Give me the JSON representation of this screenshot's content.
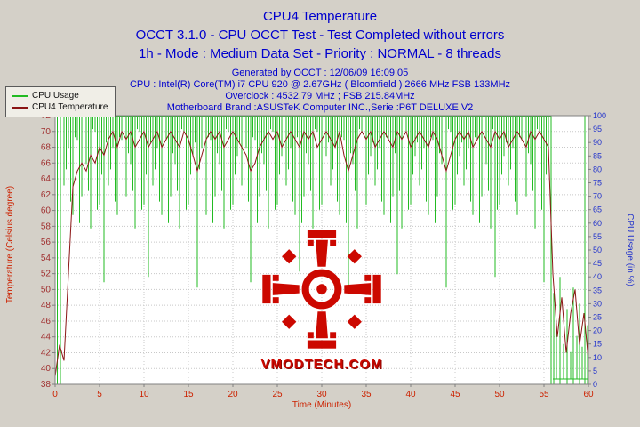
{
  "header": {
    "title": "CPU4 Temperature",
    "line2": "OCCT 3.1.0 - CPU OCCT Test - Test Completed without errors",
    "line3": "1h - Mode : Medium Data Set - Priority : NORMAL - 8 threads",
    "info": [
      "Generated by OCCT : 12/06/09 16:09:05",
      "CPU : Intel(R) Core(TM) i7 CPU 920 @ 2.67GHz ( Bloomfield ) 2666 MHz FSB 133MHz",
      "Overclock : 4532.79 MHz ; FSB 215.84MHz",
      "Motherboard Brand :ASUSTeK Computer INC.,Serie :P6T DELUXE V2"
    ],
    "title_color": "#0000cd"
  },
  "legend": {
    "items": [
      {
        "label": "CPU Usage",
        "color": "#22bb22"
      },
      {
        "label": "CPU4 Temperature",
        "color": "#8b1515"
      }
    ]
  },
  "watermark": {
    "text": "VMODTECH.COM",
    "color": "#cc0800"
  },
  "chart_data": {
    "type": "line",
    "title": "CPU4 Temperature",
    "xlabel": "Time (Minutes)",
    "ylabel_left": "Temperature (Celsius degree)",
    "ylabel_right": "CPU Usage (in %)",
    "x_range": [
      0,
      60
    ],
    "x_ticks": [
      0,
      5,
      10,
      15,
      20,
      25,
      30,
      35,
      40,
      45,
      50,
      55,
      60
    ],
    "y_left_range": [
      38,
      72
    ],
    "y_left_ticks": [
      38,
      40,
      42,
      44,
      46,
      48,
      50,
      52,
      54,
      56,
      58,
      60,
      62,
      64,
      66,
      68,
      70,
      72
    ],
    "y_right_range": [
      0,
      100
    ],
    "y_right_ticks": [
      0,
      5,
      10,
      15,
      20,
      25,
      30,
      35,
      40,
      45,
      50,
      55,
      60,
      65,
      70,
      75,
      80,
      85,
      90,
      95,
      100
    ],
    "grid": true,
    "legend_position": "top-left",
    "colors": {
      "grid": "#c8c8c8",
      "plot_bg": "#ffffff",
      "border": "#808080",
      "x_label": "#cc2200",
      "y_left_label": "#a03030",
      "y_right_label": "#2233cc"
    },
    "series": [
      {
        "name": "CPU4 Temperature",
        "axis": "left",
        "color": "#8b1515",
        "t_start": 0,
        "t_step": 0.5,
        "values": [
          39,
          43,
          41,
          52,
          63,
          65,
          66,
          65,
          67,
          66,
          68,
          67,
          69,
          70,
          68,
          70,
          69,
          70,
          68,
          69,
          70,
          68,
          69,
          70,
          68,
          69,
          70,
          69,
          68,
          70,
          69,
          67,
          65,
          67,
          69,
          70,
          69,
          70,
          68,
          69,
          70,
          69,
          68,
          67,
          65,
          66,
          68,
          69,
          70,
          69,
          70,
          68,
          69,
          70,
          69,
          68,
          70,
          69,
          70,
          68,
          69,
          70,
          69,
          68,
          70,
          67,
          65,
          67,
          69,
          70,
          69,
          70,
          68,
          69,
          70,
          69,
          68,
          70,
          69,
          70,
          68,
          69,
          70,
          69,
          68,
          70,
          69,
          67,
          65,
          67,
          69,
          70,
          69,
          70,
          68,
          69,
          70,
          69,
          68,
          70,
          69,
          70,
          68,
          69,
          70,
          69,
          68,
          70,
          69,
          70,
          69,
          68,
          52,
          44,
          49,
          42,
          47,
          50,
          43,
          47,
          41
        ]
      },
      {
        "name": "CPU Usage",
        "axis": "right",
        "color": "#22bb22",
        "style": "vertical-strokes",
        "top_line": {
          "from": 0.8,
          "to": 55.8,
          "value": 100
        },
        "tail_line": {
          "from": 56.0,
          "to": 60,
          "value": 2
        },
        "stroke_sets": [
          {
            "t_start": 1.0,
            "t_step": 0.5,
            "hi": 100,
            "lo": [
              74,
              88,
              63,
              91,
              70,
              82,
              58,
              94,
              67,
              38,
              74,
              88,
              63,
              91,
              70,
              82,
              58,
              94,
              67,
              40,
              74,
              88,
              63,
              91,
              70,
              82,
              58,
              94,
              67,
              85,
              36,
              88,
              63,
              91,
              70,
              82,
              58,
              94,
              67,
              85,
              74,
              88,
              38,
              91,
              70,
              82,
              58,
              94,
              67,
              85,
              74,
              88,
              63,
              42,
              70,
              82,
              58,
              94,
              67,
              85,
              74,
              88,
              63,
              91,
              37,
              82,
              58,
              94,
              67,
              85,
              74,
              88,
              63,
              91,
              70,
              41,
              58,
              94,
              67,
              85,
              74,
              88,
              63,
              91,
              70,
              82,
              36,
              94,
              67,
              85,
              74,
              88,
              63,
              91,
              70,
              82,
              58,
              40,
              67,
              85,
              74,
              88,
              63,
              91,
              70,
              82,
              58,
              94,
              38,
              85
            ]
          },
          {
            "t_start": 1.25,
            "t_step": 0.5,
            "hi": 100,
            "lo": [
              80,
              68,
              92,
              60,
              86,
              72,
              95,
              65,
              78,
              90,
              80,
              68,
              92,
              60,
              86,
              72,
              95,
              65,
              78,
              90,
              80,
              68,
              92,
              60,
              86,
              72,
              95,
              65,
              78,
              90,
              80,
              68,
              92,
              60,
              86,
              72,
              95,
              65,
              78,
              90,
              80,
              68,
              92,
              60,
              86,
              72,
              95,
              65,
              78,
              90,
              80,
              68,
              92,
              60,
              86,
              72,
              95,
              65,
              78,
              90,
              80,
              68,
              92,
              60,
              86,
              72,
              95,
              65,
              78,
              90,
              80,
              68,
              92,
              60,
              86,
              72,
              95,
              65,
              78,
              90,
              80,
              68,
              92,
              60,
              86,
              72,
              95,
              65,
              78,
              90,
              80,
              68,
              92,
              60,
              86,
              72,
              95,
              65,
              78,
              90,
              80,
              68,
              92,
              60,
              86,
              72,
              95,
              65,
              78
            ]
          }
        ],
        "extra_strokes": [
          [
            0.25,
            0,
            100
          ],
          [
            0.6,
            0,
            100
          ],
          [
            55.8,
            0,
            100
          ],
          [
            56.1,
            0,
            34
          ],
          [
            56.4,
            2,
            22
          ],
          [
            56.8,
            0,
            40
          ],
          [
            57.2,
            2,
            15
          ],
          [
            57.6,
            0,
            28
          ],
          [
            58.0,
            2,
            12
          ],
          [
            58.3,
            0,
            36
          ],
          [
            58.7,
            2,
            18
          ],
          [
            59.0,
            0,
            30
          ],
          [
            59.3,
            2,
            14
          ],
          [
            59.6,
            0,
            100
          ],
          [
            59.9,
            0,
            22
          ]
        ]
      }
    ]
  }
}
